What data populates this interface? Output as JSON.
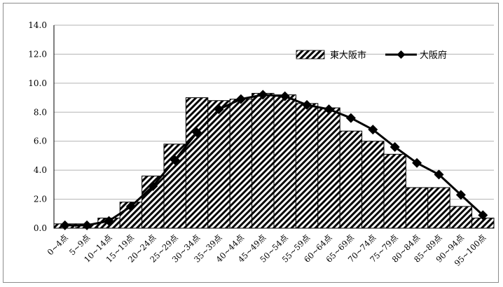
{
  "chart_data": {
    "type": "bar",
    "categories": [
      "0~4点",
      "5~9点",
      "10~14点",
      "15~19点",
      "20~24点",
      "25~29点",
      "30~34点",
      "35~39点",
      "40~44点",
      "45~49点",
      "50~54点",
      "55~59点",
      "60~64点",
      "65~69点",
      "70~74点",
      "75~79点",
      "80~84点",
      "85~89点",
      "90~94点",
      "95~100点"
    ],
    "series": [
      {
        "name": "東大阪市",
        "kind": "bar",
        "pattern": "diagonal-hatch",
        "values": [
          0.3,
          0.3,
          0.7,
          1.8,
          3.6,
          5.8,
          9.0,
          8.8,
          8.9,
          9.3,
          9.2,
          8.6,
          8.3,
          6.7,
          6.0,
          5.1,
          2.8,
          2.8,
          1.5,
          0.7
        ]
      },
      {
        "name": "大阪府",
        "kind": "line",
        "marker": "diamond",
        "values": [
          0.2,
          0.2,
          0.5,
          1.5,
          2.9,
          4.7,
          6.6,
          8.2,
          8.9,
          9.2,
          9.1,
          8.5,
          8.2,
          7.6,
          6.8,
          5.6,
          4.5,
          3.7,
          2.3,
          0.9
        ]
      }
    ],
    "y_ticks": [
      "0.0",
      "2.0",
      "4.0",
      "6.0",
      "8.0",
      "10.0",
      "12.0",
      "14.0"
    ],
    "ylim": [
      0,
      14
    ],
    "grid": true,
    "legend_position": "top-right"
  }
}
